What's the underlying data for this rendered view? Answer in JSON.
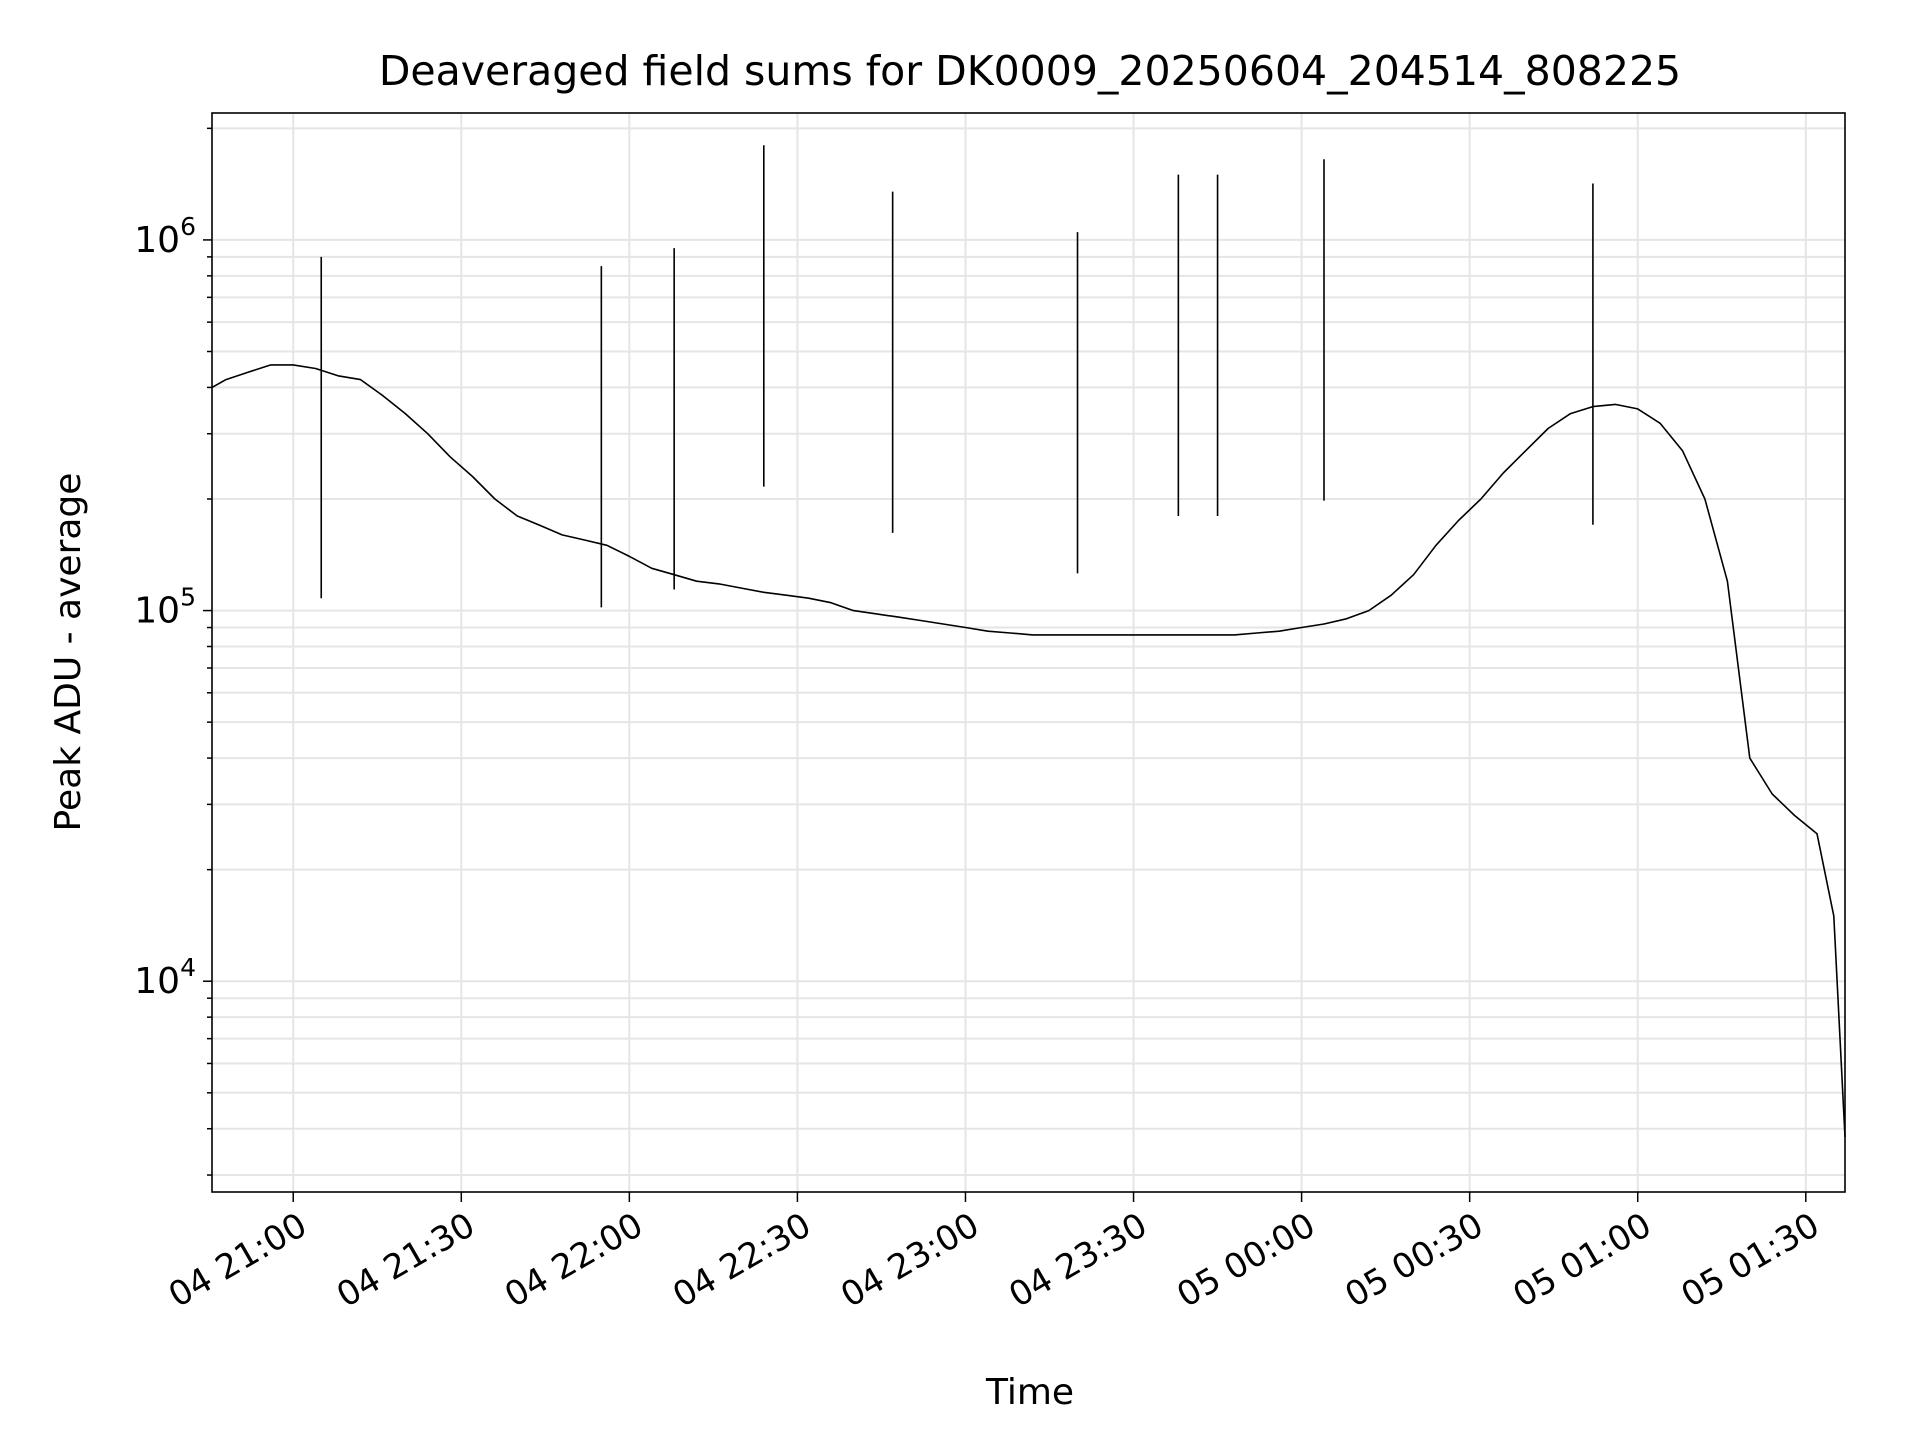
{
  "chart_data": {
    "type": "line",
    "title": "Deaveraged field sums for DK0009_20250604_204514_808225",
    "xlabel": "Time",
    "ylabel": "Peak ADU - average",
    "yscale": "log",
    "ylim": [
      2700,
      2200000
    ],
    "xlim": [
      "2025-06-04 20:45:30",
      "2025-06-05 01:37:00"
    ],
    "grid": true,
    "legend": "none",
    "line_color": "#000000",
    "grid_color": "#e5e5e5",
    "x_ticks": [
      {
        "value": "2025-06-04 21:00",
        "label": "04 21:00"
      },
      {
        "value": "2025-06-04 21:30",
        "label": "04 21:30"
      },
      {
        "value": "2025-06-04 22:00",
        "label": "04 22:00"
      },
      {
        "value": "2025-06-04 22:30",
        "label": "04 22:30"
      },
      {
        "value": "2025-06-04 23:00",
        "label": "04 23:00"
      },
      {
        "value": "2025-06-04 23:30",
        "label": "04 23:30"
      },
      {
        "value": "2025-06-05 00:00",
        "label": "05 00:00"
      },
      {
        "value": "2025-06-05 00:30",
        "label": "05 00:30"
      },
      {
        "value": "2025-06-05 01:00",
        "label": "05 01:00"
      },
      {
        "value": "2025-06-05 01:30",
        "label": "05 01:30"
      }
    ],
    "y_ticks": [
      {
        "value": 10000,
        "base": "10",
        "exp": "4"
      },
      {
        "value": 100000,
        "base": "10",
        "exp": "5"
      },
      {
        "value": 1000000,
        "base": "10",
        "exp": "6"
      }
    ],
    "series": [
      {
        "x": [
          "2025-06-04 20:45:30",
          "2025-06-04 20:48",
          "2025-06-04 20:52",
          "2025-06-04 20:56",
          "2025-06-04 21:00",
          "2025-06-04 21:04",
          "2025-06-04 21:08",
          "2025-06-04 21:12",
          "2025-06-04 21:16",
          "2025-06-04 21:20",
          "2025-06-04 21:24",
          "2025-06-04 21:28",
          "2025-06-04 21:32",
          "2025-06-04 21:36",
          "2025-06-04 21:40",
          "2025-06-04 21:44",
          "2025-06-04 21:48",
          "2025-06-04 21:52",
          "2025-06-04 21:56",
          "2025-06-04 22:00",
          "2025-06-04 22:04",
          "2025-06-04 22:08",
          "2025-06-04 22:12",
          "2025-06-04 22:16",
          "2025-06-04 22:20",
          "2025-06-04 22:24",
          "2025-06-04 22:28",
          "2025-06-04 22:32",
          "2025-06-04 22:36",
          "2025-06-04 22:40",
          "2025-06-04 22:44",
          "2025-06-04 22:48",
          "2025-06-04 22:52",
          "2025-06-04 22:56",
          "2025-06-04 23:00",
          "2025-06-04 23:04",
          "2025-06-04 23:08",
          "2025-06-04 23:12",
          "2025-06-04 23:16",
          "2025-06-04 23:20",
          "2025-06-04 23:24",
          "2025-06-04 23:28",
          "2025-06-04 23:32",
          "2025-06-04 23:36",
          "2025-06-04 23:40",
          "2025-06-04 23:44",
          "2025-06-04 23:48",
          "2025-06-04 23:52",
          "2025-06-04 23:56",
          "2025-06-05 00:00",
          "2025-06-05 00:04",
          "2025-06-05 00:08",
          "2025-06-05 00:12",
          "2025-06-05 00:16",
          "2025-06-05 00:20",
          "2025-06-05 00:24",
          "2025-06-05 00:28",
          "2025-06-05 00:32",
          "2025-06-05 00:36",
          "2025-06-05 00:40",
          "2025-06-05 00:44",
          "2025-06-05 00:48",
          "2025-06-05 00:52",
          "2025-06-05 00:56",
          "2025-06-05 01:00",
          "2025-06-05 01:04",
          "2025-06-05 01:08",
          "2025-06-05 01:12",
          "2025-06-05 01:16",
          "2025-06-05 01:20",
          "2025-06-05 01:24",
          "2025-06-05 01:28",
          "2025-06-05 01:32",
          "2025-06-05 01:35",
          "2025-06-05 01:37"
        ],
        "y": [
          400000,
          420000,
          440000,
          460000,
          460000,
          450000,
          430000,
          420000,
          380000,
          340000,
          300000,
          260000,
          230000,
          200000,
          180000,
          170000,
          160000,
          155000,
          150000,
          140000,
          130000,
          125000,
          120000,
          118000,
          115000,
          112000,
          110000,
          108000,
          105000,
          100000,
          98000,
          96000,
          94000,
          92000,
          90000,
          88000,
          87000,
          86000,
          86000,
          86000,
          86000,
          86000,
          86000,
          86000,
          86000,
          86000,
          86000,
          87000,
          88000,
          90000,
          92000,
          95000,
          100000,
          110000,
          125000,
          150000,
          175000,
          200000,
          235000,
          270000,
          310000,
          340000,
          355000,
          360000,
          350000,
          320000,
          270000,
          200000,
          120000,
          40000,
          32000,
          28000,
          25000,
          15000,
          3800
        ]
      }
    ],
    "spikes": [
      {
        "x": "2025-06-04 22:24",
        "y": 1800000
      },
      {
        "x": "2025-06-04 22:47",
        "y": 1350000
      },
      {
        "x": "2025-06-04 23:38",
        "y": 1500000
      },
      {
        "x": "2025-06-04 23:45",
        "y": 1500000
      },
      {
        "x": "2025-06-05 00:04",
        "y": 1650000
      },
      {
        "x": "2025-06-05 00:52",
        "y": 1420000
      },
      {
        "x": "2025-06-04 23:20",
        "y": 1050000
      },
      {
        "x": "2025-06-04 22:08",
        "y": 950000
      },
      {
        "x": "2025-06-04 21:05",
        "y": 900000
      },
      {
        "x": "2025-06-04 21:55",
        "y": 850000
      }
    ]
  }
}
